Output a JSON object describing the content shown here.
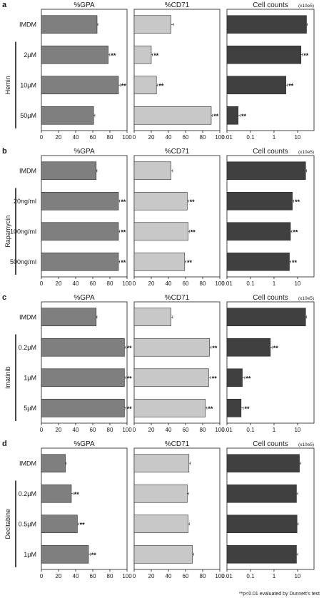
{
  "footnote": "**p<0.01 evaluated by Dunnett's test",
  "colors": {
    "gpa": "#7f7f7f",
    "cd71": "#c8c8c8",
    "counts": "#404040",
    "axis": "#1a1a1a"
  },
  "chart_data": [
    {
      "type": "bar",
      "orientation": "horizontal",
      "panel": "a",
      "group_label": "Hemin",
      "categories": [
        "IMDM",
        "2μM",
        "10μM",
        "50μM"
      ],
      "subplots": [
        {
          "title": "%GPA",
          "scale": "linear",
          "xlim": [
            0,
            100
          ],
          "ticks": [
            "0",
            "20",
            "40",
            "60",
            "80",
            "100"
          ],
          "values": [
            65,
            78,
            90,
            61
          ],
          "errors": [
            0.5,
            1.5,
            1.5,
            1
          ],
          "stars": [
            false,
            true,
            true,
            false
          ]
        },
        {
          "title": "%CD71",
          "scale": "linear",
          "xlim": [
            0,
            100
          ],
          "ticks": [
            "0",
            "20",
            "40",
            "60",
            "80",
            "100"
          ],
          "values": [
            43,
            20,
            26,
            90
          ],
          "errors": [
            2.5,
            1,
            1,
            1
          ],
          "stars": [
            false,
            true,
            true,
            true
          ]
        },
        {
          "title": "Cell counts",
          "unit": "(x10e5)",
          "scale": "log",
          "xlim": [
            0.01,
            50
          ],
          "ticks": [
            "0.01",
            "0.1",
            "1",
            "10"
          ],
          "values": [
            24,
            14,
            3.2,
            0.03
          ],
          "errors": [
            1,
            1.5,
            0.4,
            0.005
          ],
          "stars": [
            false,
            true,
            true,
            true
          ]
        }
      ]
    },
    {
      "type": "bar",
      "orientation": "horizontal",
      "panel": "b",
      "group_label": "Rapamycin",
      "categories": [
        "IMDM",
        "20ng/ml",
        "100ng/ml",
        "500ng/ml"
      ],
      "subplots": [
        {
          "title": "%GPA",
          "scale": "linear",
          "xlim": [
            0,
            100
          ],
          "ticks": [
            "0",
            "20",
            "40",
            "60",
            "80",
            "100"
          ],
          "values": [
            64,
            90,
            90,
            90
          ],
          "errors": [
            0.5,
            1,
            1,
            1
          ],
          "stars": [
            false,
            true,
            true,
            true
          ]
        },
        {
          "title": "%CD71",
          "scale": "linear",
          "xlim": [
            0,
            100
          ],
          "ticks": [
            "0",
            "20",
            "40",
            "60",
            "80",
            "100"
          ],
          "values": [
            43,
            62,
            63,
            59
          ],
          "errors": [
            1.5,
            1,
            1,
            1
          ],
          "stars": [
            false,
            true,
            true,
            true
          ]
        },
        {
          "title": "Cell counts",
          "unit": "(x10e5)",
          "scale": "log",
          "xlim": [
            0.01,
            50
          ],
          "ticks": [
            "0.01",
            "0.1",
            "1",
            "10"
          ],
          "values": [
            22,
            6,
            5,
            4.5
          ],
          "errors": [
            1,
            0.6,
            0.5,
            0.5
          ],
          "stars": [
            false,
            true,
            true,
            true
          ]
        }
      ]
    },
    {
      "type": "bar",
      "orientation": "horizontal",
      "panel": "c",
      "group_label": "Imatinib",
      "categories": [
        "IMDM",
        "0.2μM",
        "1μM",
        "5μM"
      ],
      "subplots": [
        {
          "title": "%GPA",
          "scale": "linear",
          "xlim": [
            0,
            100
          ],
          "ticks": [
            "0",
            "20",
            "40",
            "60",
            "80",
            "100"
          ],
          "values": [
            64,
            97,
            97,
            97
          ],
          "errors": [
            0.5,
            1,
            1,
            1
          ],
          "stars": [
            false,
            true,
            true,
            true
          ]
        },
        {
          "title": "%CD71",
          "scale": "linear",
          "xlim": [
            0,
            100
          ],
          "ticks": [
            "0",
            "20",
            "40",
            "60",
            "80",
            "100"
          ],
          "values": [
            43,
            88,
            87,
            83
          ],
          "errors": [
            1.5,
            1.5,
            2,
            1.5
          ],
          "stars": [
            false,
            true,
            true,
            true
          ]
        },
        {
          "title": "Cell counts",
          "unit": "(x10e5)",
          "scale": "log",
          "xlim": [
            0.01,
            50
          ],
          "ticks": [
            "0.01",
            "0.1",
            "1",
            "10"
          ],
          "values": [
            22,
            0.7,
            0.045,
            0.04
          ],
          "errors": [
            1,
            0.1,
            0.01,
            0.008
          ],
          "stars": [
            false,
            true,
            true,
            true
          ]
        }
      ]
    },
    {
      "type": "bar",
      "orientation": "horizontal",
      "panel": "d",
      "group_label": "Decitabine",
      "categories": [
        "IMDM",
        "0.2μM",
        "0.5μM",
        "1μM"
      ],
      "subplots": [
        {
          "title": "%GPA",
          "scale": "linear",
          "xlim": [
            0,
            100
          ],
          "ticks": [
            "0",
            "20",
            "40",
            "60",
            "80",
            "100"
          ],
          "values": [
            28,
            35,
            42,
            55
          ],
          "errors": [
            0.5,
            1.5,
            1,
            1.5
          ],
          "stars": [
            false,
            true,
            true,
            true
          ]
        },
        {
          "title": "%CD71",
          "scale": "linear",
          "xlim": [
            0,
            100
          ],
          "ticks": [
            "0",
            "20",
            "40",
            "60",
            "80",
            "100"
          ],
          "values": [
            64,
            62,
            63,
            68
          ],
          "errors": [
            1,
            1,
            1,
            1
          ],
          "stars": [
            false,
            false,
            false,
            false
          ]
        },
        {
          "title": "Cell counts",
          "unit": "(x10e5)",
          "scale": "log",
          "xlim": [
            0.01,
            50
          ],
          "ticks": [
            "0.01",
            "0.1",
            "1",
            "10"
          ],
          "values": [
            12,
            9,
            9.5,
            9
          ],
          "errors": [
            1,
            0.8,
            0.8,
            0.8
          ],
          "stars": [
            false,
            false,
            false,
            false
          ]
        }
      ]
    }
  ]
}
